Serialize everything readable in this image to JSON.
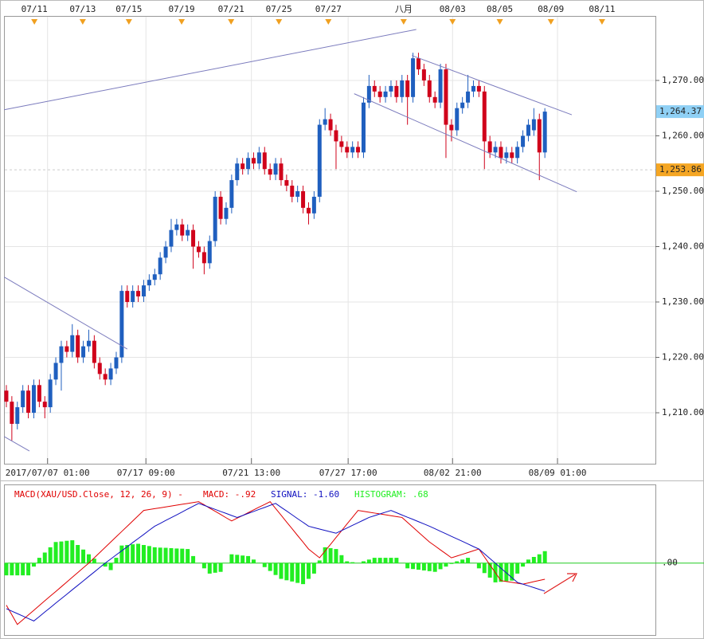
{
  "chart_data": [
    {
      "type": "candlestick",
      "x": [
        0,
        1,
        2,
        3,
        4,
        5,
        6,
        7,
        8,
        9,
        10,
        11,
        12,
        13,
        14,
        15,
        16,
        17,
        18,
        19,
        20,
        21,
        22,
        23,
        24,
        25,
        26,
        27,
        28,
        29,
        30,
        31,
        32,
        33,
        34,
        35,
        36,
        37,
        38,
        39,
        40,
        41,
        42,
        43,
        44,
        45,
        46,
        47,
        48,
        49,
        50,
        51,
        52,
        53,
        54,
        55,
        56,
        57,
        58,
        59,
        60,
        61,
        62,
        63,
        64,
        65,
        66,
        67,
        68,
        69,
        70,
        71,
        72,
        73,
        74,
        75,
        76,
        77,
        78,
        79,
        80,
        81,
        82,
        83,
        84,
        85,
        86,
        87,
        88,
        89,
        90,
        91,
        92,
        93,
        94,
        95,
        96,
        97,
        98
      ],
      "open": [
        1214,
        1212,
        1208,
        1211,
        1214,
        1210,
        1215,
        1212,
        1211,
        1216,
        1219,
        1222,
        1221,
        1224,
        1220,
        1222,
        1223,
        1219,
        1217,
        1216,
        1218,
        1220,
        1232,
        1230,
        1232,
        1231,
        1233,
        1234,
        1235,
        1238,
        1240,
        1243,
        1244,
        1242,
        1243,
        1240,
        1239,
        1237,
        1241,
        1249,
        1245,
        1247,
        1252,
        1255,
        1254,
        1256,
        1255,
        1257,
        1254,
        1253,
        1255,
        1252,
        1251,
        1249,
        1250,
        1247,
        1246,
        1249,
        1262,
        1263,
        1261,
        1259,
        1258,
        1257,
        1258,
        1257,
        1266,
        1269,
        1268,
        1267,
        1268,
        1269,
        1267,
        1270,
        1267,
        1274,
        1272,
        1270,
        1267,
        1266,
        1272,
        1262,
        1261,
        1265,
        1266,
        1268,
        1269,
        1268,
        1259,
        1257,
        1258,
        1256,
        1257,
        1256,
        1258,
        1260,
        1261,
        1263,
        1257
      ],
      "high": [
        1215,
        1213,
        1212,
        1215,
        1215,
        1216,
        1216,
        1213,
        1217,
        1220,
        1223,
        1223,
        1226,
        1225,
        1223,
        1225,
        1224,
        1220,
        1218,
        1219,
        1221,
        1233,
        1233,
        1233,
        1233,
        1234,
        1235,
        1236,
        1239,
        1241,
        1245,
        1245,
        1245,
        1244,
        1244,
        1241,
        1240,
        1242,
        1250,
        1250,
        1248,
        1253,
        1256,
        1256,
        1257,
        1257,
        1258,
        1258,
        1255,
        1256,
        1256,
        1253,
        1252,
        1251,
        1251,
        1248,
        1250,
        1263,
        1265,
        1264,
        1262,
        1260,
        1259,
        1259,
        1259,
        1267,
        1271,
        1270,
        1269,
        1269,
        1270,
        1270,
        1271,
        1271,
        1275,
        1275,
        1273,
        1271,
        1268,
        1273,
        1273,
        1263,
        1266,
        1267,
        1271,
        1270,
        1270,
        1269,
        1260,
        1259,
        1259,
        1258,
        1258,
        1259,
        1261,
        1263,
        1265,
        1264,
        1265
      ],
      "low": [
        1211,
        1205,
        1207,
        1210,
        1209,
        1209,
        1211,
        1209,
        1210,
        1215,
        1214,
        1220,
        1220,
        1219,
        1219,
        1221,
        1218,
        1216,
        1215,
        1215,
        1217,
        1219,
        1229,
        1229,
        1230,
        1230,
        1232,
        1233,
        1234,
        1237,
        1239,
        1242,
        1241,
        1241,
        1236,
        1238,
        1235,
        1236,
        1240,
        1244,
        1244,
        1246,
        1251,
        1253,
        1253,
        1254,
        1254,
        1253,
        1252,
        1252,
        1251,
        1250,
        1248,
        1248,
        1246,
        1244,
        1245,
        1248,
        1261,
        1260,
        1254,
        1257,
        1256,
        1256,
        1256,
        1256,
        1265,
        1267,
        1266,
        1266,
        1267,
        1266,
        1266,
        1262,
        1266,
        1271,
        1269,
        1266,
        1265,
        1265,
        1256,
        1259,
        1260,
        1264,
        1265,
        1267,
        1267,
        1254,
        1256,
        1256,
        1255,
        1255,
        1255,
        1255,
        1257,
        1259,
        1260,
        1252,
        1256
      ],
      "close": [
        1212,
        1208,
        1211,
        1214,
        1210,
        1215,
        1212,
        1211,
        1216,
        1219,
        1222,
        1221,
        1224,
        1220,
        1222,
        1223,
        1219,
        1217,
        1216,
        1218,
        1220,
        1232,
        1230,
        1232,
        1231,
        1233,
        1234,
        1235,
        1238,
        1240,
        1243,
        1244,
        1242,
        1243,
        1240,
        1239,
        1237,
        1241,
        1249,
        1245,
        1247,
        1252,
        1255,
        1254,
        1256,
        1255,
        1257,
        1254,
        1253,
        1255,
        1252,
        1251,
        1249,
        1250,
        1247,
        1246,
        1249,
        1262,
        1263,
        1261,
        1259,
        1258,
        1257,
        1258,
        1257,
        1266,
        1269,
        1268,
        1267,
        1268,
        1269,
        1267,
        1270,
        1267,
        1274,
        1272,
        1270,
        1267,
        1266,
        1272,
        1262,
        1261,
        1265,
        1266,
        1268,
        1269,
        1268,
        1259,
        1257,
        1258,
        1256,
        1257,
        1256,
        1258,
        1260,
        1262,
        1263,
        1257,
        1264.37
      ],
      "up_color": "#1f5fbf",
      "down_color": "#d0021b",
      "xlim": [
        -0.43,
        118.12
      ],
      "xticks": [
        {
          "value": 7.5,
          "label": "2017/07/07 01:00"
        },
        {
          "value": 25.4,
          "label": "07/17 09:00"
        },
        {
          "value": 44.6,
          "label": "07/21 13:00"
        },
        {
          "value": 62.2,
          "label": "07/27 17:00"
        },
        {
          "value": 81.2,
          "label": "08/02 21:00"
        },
        {
          "value": 100.3,
          "label": "08/09 01:00"
        }
      ],
      "top_ticks": [
        {
          "value": 5.1,
          "label": "07/11"
        },
        {
          "value": 13.9,
          "label": "07/13"
        },
        {
          "value": 22.3,
          "label": "07/15"
        },
        {
          "value": 31.9,
          "label": "07/19"
        },
        {
          "value": 40.9,
          "label": "07/21"
        },
        {
          "value": 49.6,
          "label": "07/25"
        },
        {
          "value": 58.6,
          "label": "07/27"
        },
        {
          "value": 72.3,
          "label": "八月"
        },
        {
          "value": 81.2,
          "label": "08/03"
        },
        {
          "value": 89.8,
          "label": "08/05"
        },
        {
          "value": 99.1,
          "label": "08/09"
        },
        {
          "value": 108.4,
          "label": "08/11"
        }
      ],
      "ylim": [
        1200.8,
        1279.2
      ],
      "yticks": [
        {
          "value": 1210,
          "label": "1,210.00"
        },
        {
          "value": 1220,
          "label": "1,220.00"
        },
        {
          "value": 1230,
          "label": "1,230.00"
        },
        {
          "value": 1240,
          "label": "1,240.00"
        },
        {
          "value": 1250,
          "label": "1,250.00"
        },
        {
          "value": 1260,
          "label": "1,260.00"
        },
        {
          "value": 1270,
          "label": "1,270.00"
        }
      ],
      "grid": true,
      "price_markers": [
        {
          "value": 1264.37,
          "label": "1,264.37",
          "color": "#8fd0f5",
          "dashed": false
        },
        {
          "value": 1253.86,
          "label": "1,253.86",
          "color": "#f5a623",
          "dashed": true
        }
      ],
      "trendlines": [
        {
          "x": [
            -0.4,
            74.6
          ],
          "y": [
            1264.7,
            1279.2
          ]
        },
        {
          "x": [
            -0.4,
            22.0
          ],
          "y": [
            1234.5,
            1221.5
          ]
        },
        {
          "x": [
            -0.4,
            4.2
          ],
          "y": [
            1205.7,
            1203.1
          ]
        },
        {
          "x": [
            73.8,
            102.9
          ],
          "y": [
            1274.5,
            1263.8
          ]
        },
        {
          "x": [
            63.3,
            103.8
          ],
          "y": [
            1267.6,
            1249.9
          ]
        }
      ],
      "trendline_color": "#7b7bbd"
    },
    {
      "type": "macd",
      "title": "MACD(XAU/USD.Close, 12, 26, 9) -",
      "ylim": [
        -4.1,
        4.3
      ],
      "yticks": [
        {
          "value": 0,
          "label": ".00"
        }
      ],
      "grid_color": "#22cc22",
      "series": [
        {
          "name": "MACD",
          "label": "MACD: -.92",
          "kind": "line",
          "color": "#e00000",
          "values": [
            -2.4,
            -2.95,
            -3.5,
            -3.23,
            -2.96,
            -2.69,
            -2.42,
            -2.15,
            -1.88,
            -1.62,
            -1.35,
            -1.08,
            -0.81,
            -0.54,
            -0.27,
            0,
            0.3,
            0.6,
            0.9,
            1.2,
            1.5,
            1.8,
            2.1,
            2.4,
            2.7,
            3.0,
            3.05,
            3.1,
            3.15,
            3.2,
            3.25,
            3.3,
            3.35,
            3.4,
            3.45,
            3.5,
            3.32,
            3.13,
            2.95,
            2.77,
            2.58,
            2.4,
            2.56,
            2.71,
            2.87,
            3.03,
            3.19,
            3.34,
            3.5,
            3.11,
            2.73,
            2.34,
            1.96,
            1.57,
            1.19,
            0.8,
            0.55,
            0.3,
            0.69,
            1.07,
            1.46,
            1.84,
            2.23,
            2.61,
            3.0,
            2.95,
            2.9,
            2.85,
            2.8,
            2.75,
            2.7,
            2.65,
            2.6,
            2.32,
            2.04,
            1.76,
            1.48,
            1.2,
            0.98,
            0.75,
            0.53,
            0.3,
            0.4,
            0.5,
            0.6,
            0.7,
            0.8,
            0.35,
            -0.1,
            -0.55,
            -1.0,
            -1.05,
            -1.1,
            -1.15,
            -1.2,
            -1.13,
            -1.06,
            -0.99,
            -0.92
          ]
        },
        {
          "name": "SIGNAL",
          "label": "SIGNAL: -1.60",
          "kind": "line",
          "color": "#1010c0",
          "values": [
            -2.6,
            -2.74,
            -2.88,
            -3.02,
            -3.16,
            -3.3,
            -3.05,
            -2.79,
            -2.54,
            -2.28,
            -2.03,
            -1.78,
            -1.52,
            -1.27,
            -1.02,
            -0.76,
            -0.51,
            -0.25,
            0,
            0.23,
            0.47,
            0.7,
            0.93,
            1.17,
            1.4,
            1.63,
            1.87,
            2.1,
            2.26,
            2.43,
            2.59,
            2.75,
            2.91,
            3.08,
            3.24,
            3.4,
            3.29,
            3.17,
            3.06,
            2.94,
            2.83,
            2.71,
            2.6,
            2.71,
            2.83,
            2.94,
            3.06,
            3.17,
            3.29,
            3.4,
            3.18,
            2.97,
            2.75,
            2.53,
            2.32,
            2.1,
            2.02,
            1.94,
            1.86,
            1.78,
            1.7,
            1.85,
            2.0,
            2.15,
            2.3,
            2.45,
            2.6,
            2.7,
            2.8,
            2.9,
            3.0,
            2.87,
            2.74,
            2.61,
            2.49,
            2.36,
            2.23,
            2.1,
            1.96,
            1.81,
            1.67,
            1.52,
            1.38,
            1.24,
            1.09,
            0.94,
            0.8,
            0.53,
            0.26,
            -0.01,
            -0.29,
            -0.56,
            -0.83,
            -1.1,
            -1.2,
            -1.3,
            -1.4,
            -1.5,
            -1.6
          ]
        },
        {
          "name": "HISTOGRAM",
          "label": "HISTOGRAM: .68",
          "kind": "bar",
          "color": "#22ee22",
          "values": [
            -0.7,
            -0.7,
            -0.7,
            -0.7,
            -0.7,
            -0.2,
            0.3,
            0.6,
            0.9,
            1.2,
            1.23,
            1.27,
            1.3,
            1.03,
            0.77,
            0.5,
            0.25,
            0,
            -0.2,
            -0.4,
            0.3,
            1.0,
            1.03,
            1.07,
            1.1,
            1.03,
            0.97,
            0.9,
            0.88,
            0.87,
            0.85,
            0.83,
            0.82,
            0.8,
            0.4,
            0,
            -0.3,
            -0.6,
            -0.55,
            -0.5,
            0,
            0.5,
            0.47,
            0.43,
            0.4,
            0.2,
            0,
            -0.23,
            -0.45,
            -0.68,
            -0.9,
            -0.98,
            -1.05,
            -1.13,
            -1.2,
            -0.9,
            -0.6,
            0.15,
            0.9,
            0.85,
            0.8,
            0.45,
            0.1,
            0.05,
            0,
            0.1,
            0.2,
            0.3,
            0.3,
            0.3,
            0.3,
            0.3,
            0,
            -0.3,
            -0.34,
            -0.38,
            -0.42,
            -0.46,
            -0.5,
            -0.35,
            -0.2,
            -0.05,
            0.1,
            0.2,
            0.3,
            0,
            -0.3,
            -0.57,
            -0.83,
            -1.1,
            -1.07,
            -1.03,
            -1.0,
            -0.6,
            -0.2,
            0.2,
            0.35,
            0.5,
            0.68
          ]
        }
      ]
    }
  ]
}
